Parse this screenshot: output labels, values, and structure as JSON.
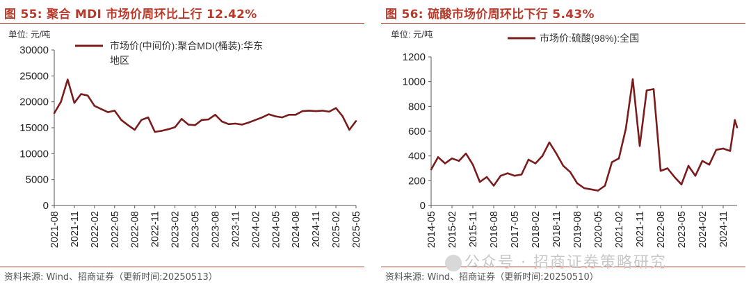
{
  "left": {
    "title": "图 55:  聚合 MDI 市场价周环比上行 12.42%",
    "unit": "单位:  元/吨",
    "legend": "市场价(中间价):聚合MDI(桶装):华东地区",
    "legend_line1": "市场价(中间价):聚合MDI(桶装):华东",
    "legend_line2": "地区",
    "footer": "资料来源:  Wind、招商证券（更新时间:20250513）",
    "color": "#7a1c1c"
  },
  "right": {
    "title": "图 56:  硫酸市场价周环比下行 5.43%",
    "unit": "单位:  元/吨",
    "legend": "市场价:硫酸(98%):全国",
    "footer": "资料来源:  Wind、招商证券（更新时间:20250510）",
    "color": "#7a1c1c"
  },
  "watermark": "公众号 · 招商证券策略研究",
  "chart_data": [
    {
      "type": "line",
      "title": "图 55:  聚合 MDI 市场价周环比上行 12.42%",
      "ylabel": "单位:  元/吨",
      "ylim": [
        0,
        30000
      ],
      "yticks": [
        0,
        5000,
        10000,
        15000,
        20000,
        25000,
        30000
      ],
      "xticks": [
        "2021-08",
        "2021-11",
        "2022-02",
        "2022-05",
        "2022-08",
        "2022-11",
        "2023-02",
        "2023-05",
        "2023-08",
        "2023-11",
        "2024-02",
        "2024-05",
        "2024-08",
        "2024-11",
        "2025-02",
        "2025-05"
      ],
      "legend_position": "top",
      "grid": false,
      "series": [
        {
          "name": "市场价(中间价):聚合MDI(桶装):华东地区",
          "x": [
            "2021-08",
            "2021-09",
            "2021-10",
            "2021-11",
            "2021-12",
            "2022-01",
            "2022-02",
            "2022-03",
            "2022-04",
            "2022-05",
            "2022-06",
            "2022-07",
            "2022-08",
            "2022-09",
            "2022-10",
            "2022-11",
            "2022-12",
            "2023-01",
            "2023-02",
            "2023-03",
            "2023-04",
            "2023-05",
            "2023-06",
            "2023-07",
            "2023-08",
            "2023-09",
            "2023-10",
            "2023-11",
            "2023-12",
            "2024-01",
            "2024-02",
            "2024-03",
            "2024-04",
            "2024-05",
            "2024-06",
            "2024-07",
            "2024-08",
            "2024-09",
            "2024-10",
            "2024-11",
            "2024-12",
            "2025-01",
            "2025-02",
            "2025-03",
            "2025-04",
            "2025-05"
          ],
          "y": [
            17800,
            20000,
            24300,
            19800,
            21500,
            21200,
            19200,
            18600,
            18000,
            18300,
            16500,
            15500,
            14600,
            16500,
            17000,
            14200,
            14400,
            14700,
            15100,
            16700,
            15600,
            15500,
            16500,
            16600,
            17500,
            16200,
            15700,
            15800,
            15600,
            16000,
            16500,
            17000,
            17600,
            17200,
            17000,
            17500,
            17500,
            18200,
            18300,
            18200,
            18300,
            18100,
            18800,
            17200,
            14600,
            16300
          ]
        }
      ]
    },
    {
      "type": "line",
      "title": "图 56:  硫酸市场价周环比下行 5.43%",
      "ylabel": "单位:  元/吨",
      "ylim": [
        0,
        1200
      ],
      "yticks": [
        0,
        200,
        400,
        600,
        800,
        1000,
        1200
      ],
      "xticks": [
        "2014-05",
        "2015-02",
        "2015-11",
        "2016-08",
        "2017-05",
        "2018-02",
        "2018-11",
        "2019-08",
        "2020-05",
        "2021-02",
        "2021-11",
        "2022-08",
        "2023-05",
        "2024-02",
        "2024-11"
      ],
      "legend_position": "top",
      "grid": false,
      "series": [
        {
          "name": "市场价:硫酸(98%):全国",
          "x": [
            "2014-05",
            "2014-08",
            "2014-11",
            "2015-02",
            "2015-05",
            "2015-08",
            "2015-11",
            "2016-02",
            "2016-05",
            "2016-08",
            "2016-11",
            "2017-02",
            "2017-05",
            "2017-08",
            "2017-11",
            "2018-02",
            "2018-05",
            "2018-08",
            "2018-11",
            "2019-02",
            "2019-05",
            "2019-08",
            "2019-11",
            "2020-02",
            "2020-05",
            "2020-08",
            "2020-11",
            "2021-02",
            "2021-05",
            "2021-08",
            "2021-11",
            "2022-02",
            "2022-05",
            "2022-08",
            "2022-11",
            "2023-02",
            "2023-05",
            "2023-08",
            "2023-11",
            "2024-02",
            "2024-05",
            "2024-08",
            "2024-11",
            "2025-02",
            "2025-04",
            "2025-05"
          ],
          "y": [
            290,
            390,
            340,
            380,
            360,
            420,
            330,
            190,
            230,
            160,
            240,
            260,
            240,
            250,
            370,
            340,
            400,
            510,
            420,
            320,
            270,
            180,
            140,
            130,
            120,
            160,
            350,
            380,
            620,
            1020,
            480,
            930,
            940,
            280,
            300,
            230,
            170,
            320,
            240,
            360,
            330,
            450,
            460,
            440,
            690,
            630
          ]
        }
      ]
    }
  ]
}
